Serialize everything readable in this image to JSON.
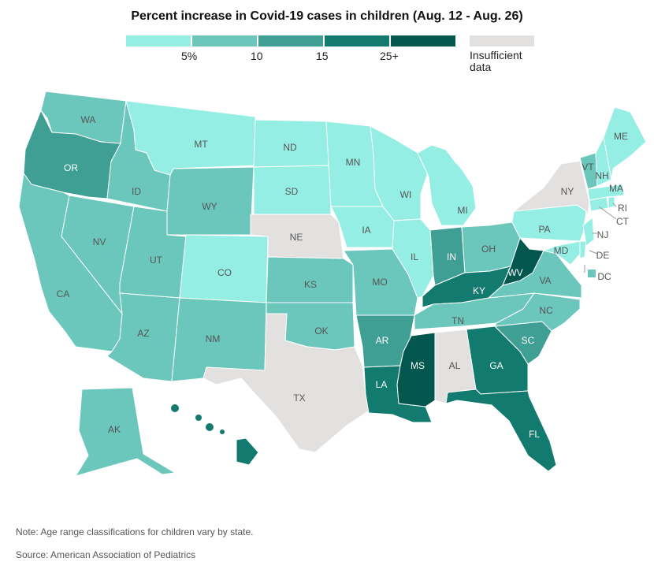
{
  "title": "Percent increase in Covid-19 cases in children (Aug. 12 - Aug. 26)",
  "legend": {
    "ticks": [
      "5%",
      "10",
      "15",
      "25+"
    ],
    "insufficient": "Insufficient data"
  },
  "colors": {
    "c1": "#95eee3",
    "c2": "#6bc6bc",
    "c3": "#3f9f94",
    "c4": "#127a6e",
    "c5": "#03574e",
    "na": "#e2e1df",
    "label_dark": "#555555",
    "label_light": "#ffffff"
  },
  "states": [
    {
      "abbr": "WA",
      "bin": "c2"
    },
    {
      "abbr": "OR",
      "bin": "c3"
    },
    {
      "abbr": "CA",
      "bin": "c2"
    },
    {
      "abbr": "ID",
      "bin": "c2"
    },
    {
      "abbr": "NV",
      "bin": "c2"
    },
    {
      "abbr": "MT",
      "bin": "c1"
    },
    {
      "abbr": "WY",
      "bin": "c2"
    },
    {
      "abbr": "UT",
      "bin": "c2"
    },
    {
      "abbr": "AZ",
      "bin": "c2"
    },
    {
      "abbr": "CO",
      "bin": "c1"
    },
    {
      "abbr": "NM",
      "bin": "c2"
    },
    {
      "abbr": "ND",
      "bin": "c1"
    },
    {
      "abbr": "SD",
      "bin": "c1"
    },
    {
      "abbr": "NE",
      "bin": "na"
    },
    {
      "abbr": "KS",
      "bin": "c2"
    },
    {
      "abbr": "OK",
      "bin": "c2"
    },
    {
      "abbr": "TX",
      "bin": "na"
    },
    {
      "abbr": "MN",
      "bin": "c1"
    },
    {
      "abbr": "IA",
      "bin": "c1"
    },
    {
      "abbr": "MO",
      "bin": "c2"
    },
    {
      "abbr": "AR",
      "bin": "c3"
    },
    {
      "abbr": "LA",
      "bin": "c4"
    },
    {
      "abbr": "WI",
      "bin": "c1"
    },
    {
      "abbr": "IL",
      "bin": "c1"
    },
    {
      "abbr": "MI",
      "bin": "c1"
    },
    {
      "abbr": "IN",
      "bin": "c3"
    },
    {
      "abbr": "OH",
      "bin": "c2"
    },
    {
      "abbr": "KY",
      "bin": "c4"
    },
    {
      "abbr": "TN",
      "bin": "c2"
    },
    {
      "abbr": "MS",
      "bin": "c5"
    },
    {
      "abbr": "AL",
      "bin": "na"
    },
    {
      "abbr": "GA",
      "bin": "c4"
    },
    {
      "abbr": "FL",
      "bin": "c4"
    },
    {
      "abbr": "SC",
      "bin": "c3"
    },
    {
      "abbr": "NC",
      "bin": "c2"
    },
    {
      "abbr": "VA",
      "bin": "c2"
    },
    {
      "abbr": "WV",
      "bin": "c5"
    },
    {
      "abbr": "PA",
      "bin": "c1"
    },
    {
      "abbr": "NY",
      "bin": "na"
    },
    {
      "abbr": "MD",
      "bin": "c1"
    },
    {
      "abbr": "DE",
      "bin": "c1"
    },
    {
      "abbr": "NJ",
      "bin": "c1"
    },
    {
      "abbr": "CT",
      "bin": "c1"
    },
    {
      "abbr": "RI",
      "bin": "c1"
    },
    {
      "abbr": "MA",
      "bin": "c1"
    },
    {
      "abbr": "VT",
      "bin": "c2"
    },
    {
      "abbr": "NH",
      "bin": "c1"
    },
    {
      "abbr": "ME",
      "bin": "c1"
    },
    {
      "abbr": "DC",
      "bin": "c2"
    },
    {
      "abbr": "AK",
      "bin": "c2"
    },
    {
      "abbr": "HI",
      "bin": "c4"
    }
  ],
  "footer": {
    "note": "Note: Age range classifications for children vary by state.",
    "source": "Source: American Association of Pediatrics"
  }
}
